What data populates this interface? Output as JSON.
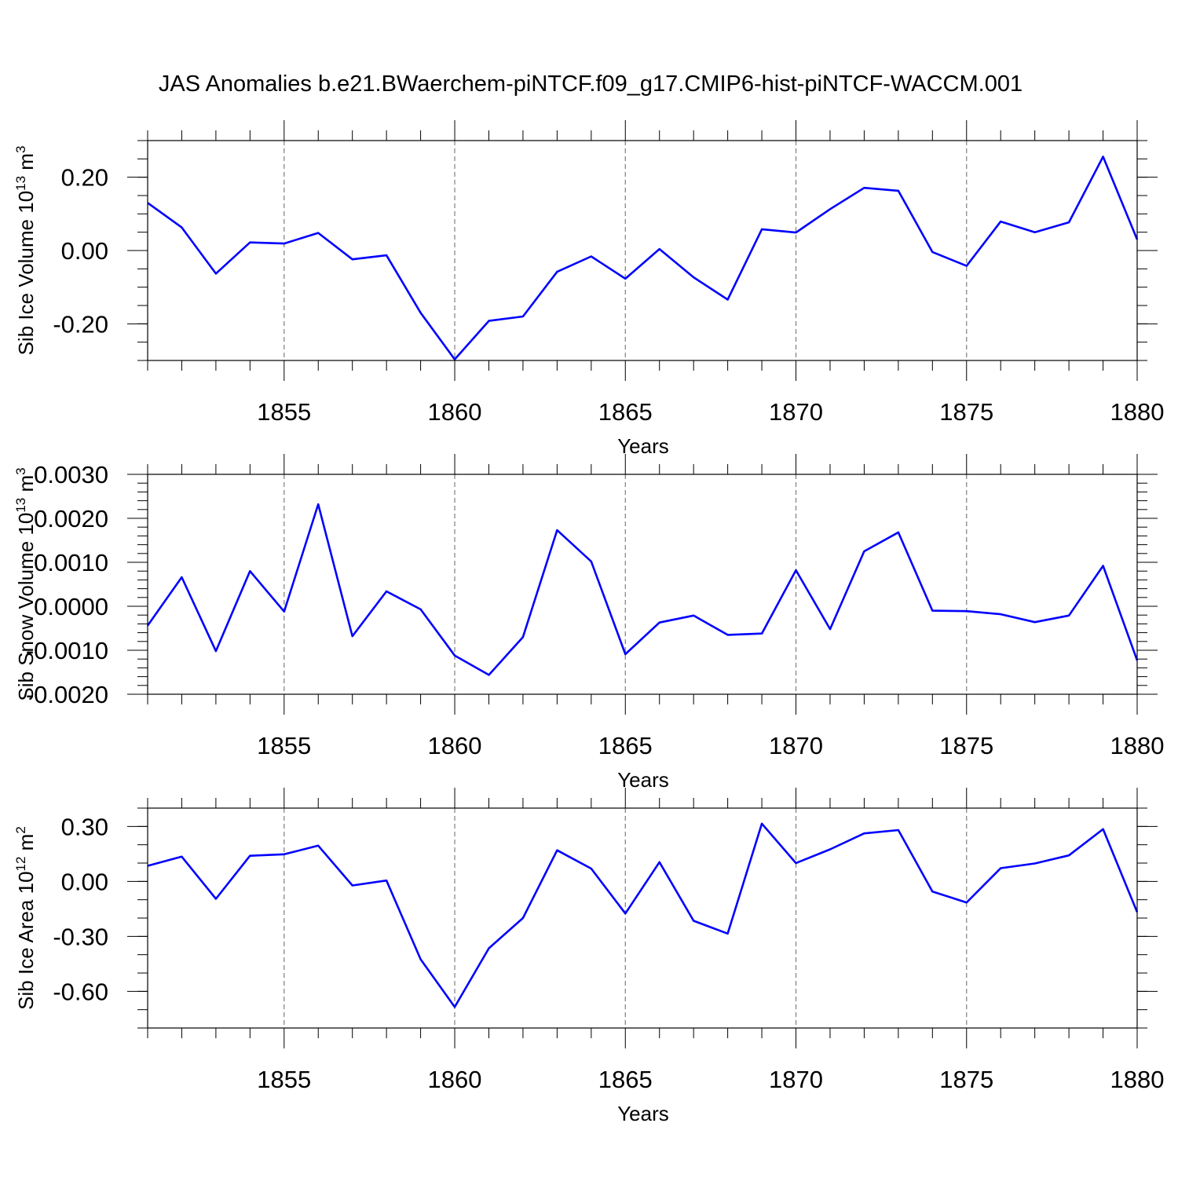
{
  "title": "JAS Anomalies b.e21.BWaerchem-piNTCF.f09_g17.CMIP6-hist-piNTCF-WACCM.001",
  "colors": {
    "line": "#0000ff",
    "frame": "#000000",
    "grid": "#7f7f7f"
  },
  "chart_data": [
    {
      "type": "line",
      "ylabel": {
        "main": "Sib Ice Volume 10",
        "exp": "13",
        "unit": " m",
        "unit_exp": "3"
      },
      "xlabel": "Years",
      "xlim": [
        1851,
        1880
      ],
      "ylim": [
        -0.3,
        0.3
      ],
      "xticks": [
        1855,
        1860,
        1865,
        1870,
        1875,
        1880
      ],
      "xtick_labels": [
        "1855",
        "1860",
        "1865",
        "1870",
        "1875",
        "1880"
      ],
      "yticks": [
        -0.2,
        0.0,
        0.2
      ],
      "ytick_labels": [
        "-0.20",
        "0.00",
        "0.20"
      ],
      "yminor": 0.05,
      "grid_x": true,
      "series": [
        {
          "name": "Sib Ice Volume",
          "x": [
            1851,
            1852,
            1853,
            1854,
            1855,
            1856,
            1857,
            1858,
            1859,
            1860,
            1861,
            1862,
            1863,
            1864,
            1865,
            1866,
            1867,
            1868,
            1869,
            1870,
            1871,
            1872,
            1873,
            1874,
            1875,
            1876,
            1877,
            1878,
            1879,
            1880
          ],
          "y": [
            0.13,
            0.063,
            -0.063,
            0.022,
            0.019,
            0.048,
            -0.024,
            -0.013,
            -0.17,
            -0.297,
            -0.192,
            -0.18,
            -0.058,
            -0.016,
            -0.077,
            0.004,
            -0.073,
            -0.134,
            0.058,
            0.049,
            0.113,
            0.171,
            0.163,
            -0.004,
            -0.042,
            0.079,
            0.05,
            0.077,
            0.256,
            0.03
          ]
        }
      ]
    },
    {
      "type": "line",
      "ylabel": {
        "main": "Sib Snow Volume 10",
        "exp": "13",
        "unit": " m",
        "unit_exp": "3"
      },
      "xlabel": "Years",
      "xlim": [
        1851,
        1880
      ],
      "ylim": [
        -0.002,
        0.003
      ],
      "xticks": [
        1855,
        1860,
        1865,
        1870,
        1875,
        1880
      ],
      "xtick_labels": [
        "1855",
        "1860",
        "1865",
        "1870",
        "1875",
        "1880"
      ],
      "yticks": [
        -0.002,
        -0.001,
        0.0,
        0.001,
        0.002,
        0.003
      ],
      "ytick_labels": [
        "-0.0020",
        "-0.0010",
        "0.0000",
        "0.0010",
        "0.0020",
        "0.0030"
      ],
      "yminor": 0.0002,
      "grid_x": true,
      "series": [
        {
          "name": "Sib Snow Volume",
          "x": [
            1851,
            1852,
            1853,
            1854,
            1855,
            1856,
            1857,
            1858,
            1859,
            1860,
            1861,
            1862,
            1863,
            1864,
            1865,
            1866,
            1867,
            1868,
            1869,
            1870,
            1871,
            1872,
            1873,
            1874,
            1875,
            1876,
            1877,
            1878,
            1879,
            1880
          ],
          "y": [
            -0.00044,
            0.00066,
            -0.00102,
            0.0008,
            -0.00012,
            0.00232,
            -0.00068,
            0.00034,
            -7e-05,
            -0.00112,
            -0.00156,
            -0.0007,
            0.00173,
            0.00102,
            -0.00109,
            -0.00037,
            -0.00021,
            -0.00065,
            -0.00062,
            0.00082,
            -0.00052,
            0.00125,
            0.00168,
            -0.0001,
            -0.00011,
            -0.00018,
            -0.00036,
            -0.00021,
            0.00092,
            -0.00123
          ]
        }
      ]
    },
    {
      "type": "line",
      "ylabel": {
        "main": "Sib Ice Area 10",
        "exp": "12",
        "unit": " m",
        "unit_exp": "2"
      },
      "xlabel": "Years",
      "xlim": [
        1851,
        1880
      ],
      "ylim": [
        -0.8,
        0.4
      ],
      "xticks": [
        1855,
        1860,
        1865,
        1870,
        1875,
        1880
      ],
      "xtick_labels": [
        "1855",
        "1860",
        "1865",
        "1870",
        "1875",
        "1880"
      ],
      "yticks": [
        -0.6,
        -0.3,
        0.0,
        0.3
      ],
      "ytick_labels": [
        "-0.60",
        "-0.30",
        "0.00",
        "0.30"
      ],
      "yminor": 0.1,
      "grid_x": true,
      "series": [
        {
          "name": "Sib Ice Area",
          "x": [
            1851,
            1852,
            1853,
            1854,
            1855,
            1856,
            1857,
            1858,
            1859,
            1860,
            1861,
            1862,
            1863,
            1864,
            1865,
            1866,
            1867,
            1868,
            1869,
            1870,
            1871,
            1872,
            1873,
            1874,
            1875,
            1876,
            1877,
            1878,
            1879,
            1880
          ],
          "y": [
            0.085,
            0.135,
            -0.095,
            0.14,
            0.148,
            0.195,
            -0.022,
            0.005,
            -0.425,
            -0.685,
            -0.365,
            -0.2,
            0.17,
            0.07,
            -0.175,
            0.105,
            -0.215,
            -0.285,
            0.315,
            0.1,
            0.175,
            0.262,
            0.28,
            -0.055,
            -0.115,
            0.072,
            0.098,
            0.142,
            0.285,
            -0.168
          ]
        }
      ]
    }
  ]
}
